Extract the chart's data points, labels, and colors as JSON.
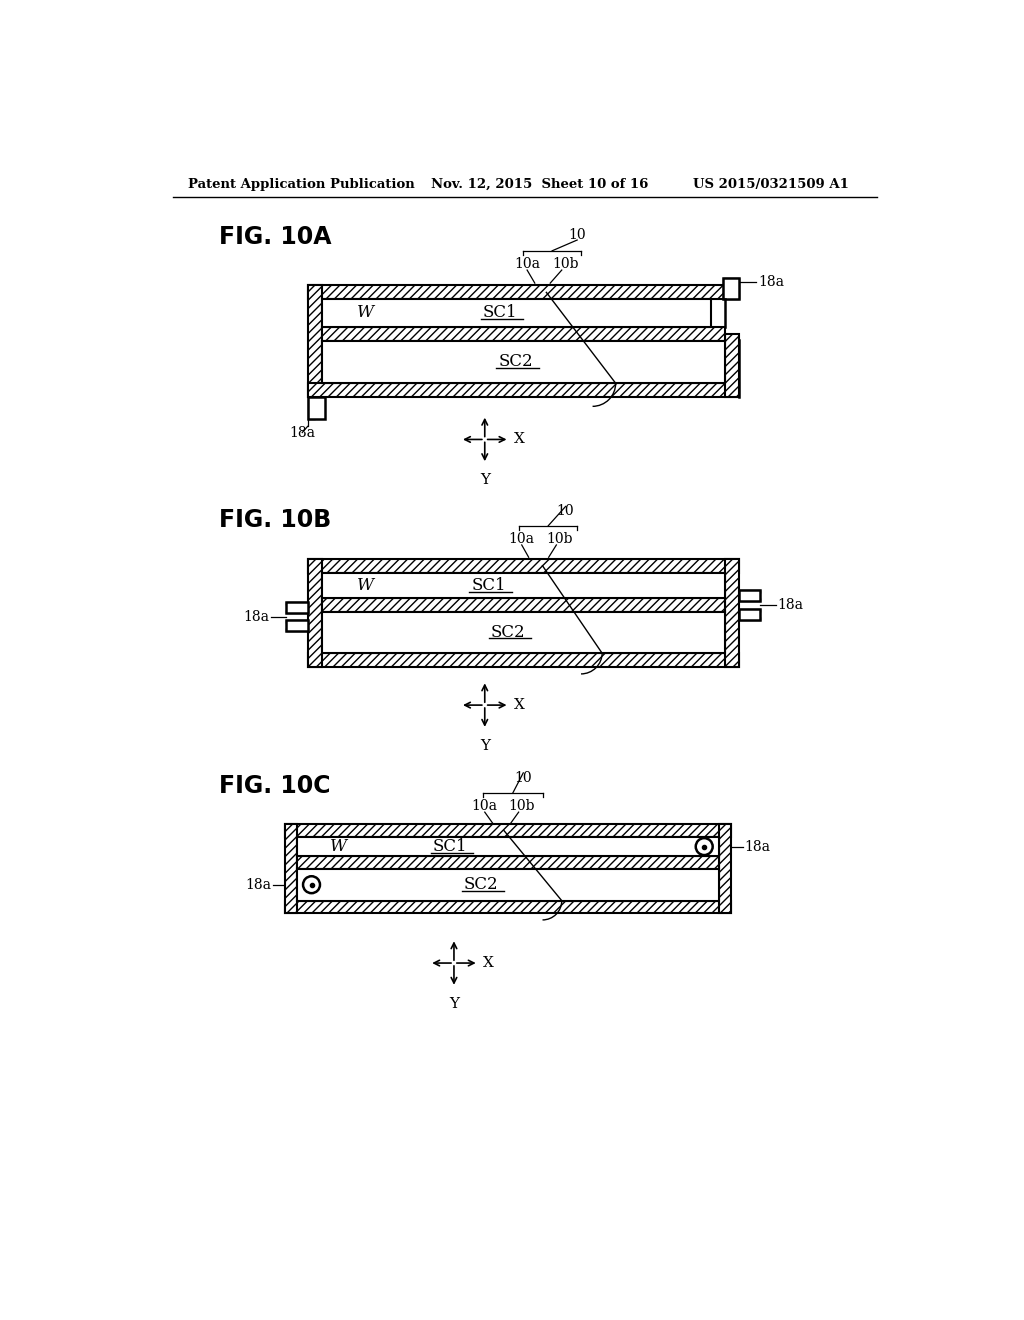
{
  "header_left": "Patent Application Publication",
  "header_mid": "Nov. 12, 2015  Sheet 10 of 16",
  "header_right": "US 2015/0321509 A1",
  "bg_color": "#ffffff",
  "line_color": "#000000",
  "fig_labels": [
    "FIG. 10A",
    "FIG. 10B",
    "FIG. 10C"
  ]
}
